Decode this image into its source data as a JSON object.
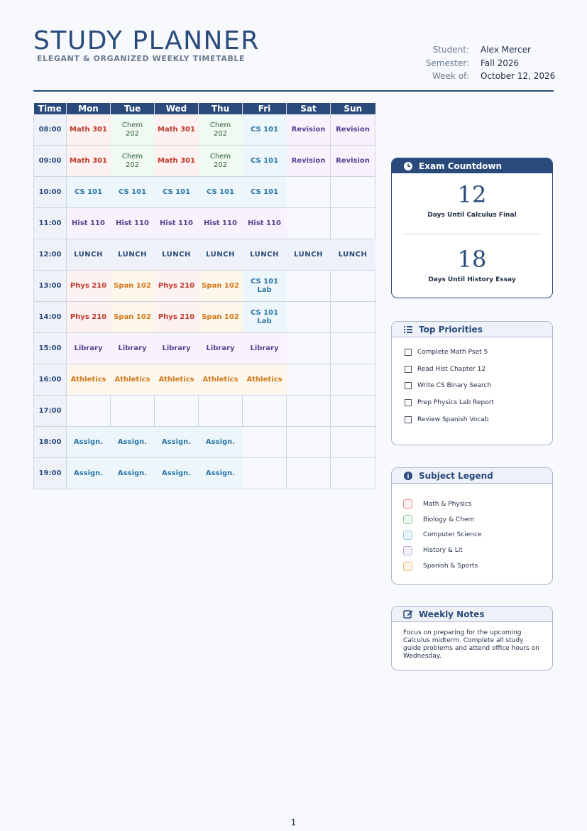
{
  "header": {
    "title": "STUDY PLANNER",
    "subtitle": "ELEGANT & ORGANIZED WEEKLY TIMETABLE",
    "info": [
      {
        "label": "Student:",
        "value": "Alex Mercer"
      },
      {
        "label": "Semester:",
        "value": "Fall 2026"
      },
      {
        "label": "Week of:",
        "value": "October 12, 2026"
      }
    ]
  },
  "timetable": {
    "columns": [
      "Time",
      "Mon",
      "Tue",
      "Wed",
      "Thu",
      "Fri",
      "Sat",
      "Sun"
    ],
    "rows": [
      {
        "time": "08:00",
        "cells": [
          [
            "Math 301",
            "red"
          ],
          [
            "Chem 202",
            "green"
          ],
          [
            "Math 301",
            "red"
          ],
          [
            "Chem 202",
            "green"
          ],
          [
            "CS 101",
            "blue"
          ],
          [
            "Revision",
            "rev"
          ],
          [
            "Revision",
            "rev"
          ]
        ]
      },
      {
        "time": "09:00",
        "cells": [
          [
            "Math 301",
            "red"
          ],
          [
            "Chem 202",
            "green"
          ],
          [
            "Math 301",
            "red"
          ],
          [
            "Chem 202",
            "green"
          ],
          [
            "CS 101",
            "blue"
          ],
          [
            "Revision",
            "rev"
          ],
          [
            "Revision",
            "rev"
          ]
        ]
      },
      {
        "time": "10:00",
        "cells": [
          [
            "CS 101",
            "blue"
          ],
          [
            "CS 101",
            "blue"
          ],
          [
            "CS 101",
            "blue"
          ],
          [
            "CS 101",
            "blue"
          ],
          [
            "CS 101",
            "blue"
          ],
          [
            "",
            ""
          ],
          [
            "",
            ""
          ]
        ]
      },
      {
        "time": "11:00",
        "cells": [
          [
            "Hist 110",
            "purple"
          ],
          [
            "Hist 110",
            "purple"
          ],
          [
            "Hist 110",
            "purple"
          ],
          [
            "Hist 110",
            "purple"
          ],
          [
            "Hist 110",
            "purple"
          ],
          [
            "",
            ""
          ],
          [
            "",
            ""
          ]
        ]
      },
      {
        "time": "12:00",
        "cells": [
          [
            "LUNCH",
            "lunch"
          ],
          [
            "LUNCH",
            "lunch"
          ],
          [
            "LUNCH",
            "lunch"
          ],
          [
            "LUNCH",
            "lunch"
          ],
          [
            "LUNCH",
            "lunch"
          ],
          [
            "LUNCH",
            "lunch"
          ],
          [
            "LUNCH",
            "lunch"
          ]
        ]
      },
      {
        "time": "13:00",
        "cells": [
          [
            "Phys 210",
            "red"
          ],
          [
            "Span 102",
            "orange"
          ],
          [
            "Phys 210",
            "red"
          ],
          [
            "Span 102",
            "orange"
          ],
          [
            "CS 101 Lab",
            "blue"
          ],
          [
            "",
            ""
          ],
          [
            "",
            ""
          ]
        ]
      },
      {
        "time": "14:00",
        "cells": [
          [
            "Phys 210",
            "red"
          ],
          [
            "Span 102",
            "orange"
          ],
          [
            "Phys 210",
            "red"
          ],
          [
            "Span 102",
            "orange"
          ],
          [
            "CS 101 Lab",
            "blue"
          ],
          [
            "",
            ""
          ],
          [
            "",
            ""
          ]
        ]
      },
      {
        "time": "15:00",
        "cells": [
          [
            "Library",
            "purple"
          ],
          [
            "Library",
            "purple"
          ],
          [
            "Library",
            "purple"
          ],
          [
            "Library",
            "purple"
          ],
          [
            "Library",
            "purple"
          ],
          [
            "",
            ""
          ],
          [
            "",
            ""
          ]
        ]
      },
      {
        "time": "16:00",
        "cells": [
          [
            "Athletics",
            "orange"
          ],
          [
            "Athletics",
            "orange"
          ],
          [
            "Athletics",
            "orange"
          ],
          [
            "Athletics",
            "orange"
          ],
          [
            "Athletics",
            "orange"
          ],
          [
            "",
            ""
          ],
          [
            "",
            ""
          ]
        ]
      },
      {
        "time": "17:00",
        "cells": [
          [
            "",
            ""
          ],
          [
            "",
            ""
          ],
          [
            "",
            ""
          ],
          [
            "",
            ""
          ],
          [
            "",
            ""
          ],
          [
            "",
            ""
          ],
          [
            "",
            ""
          ]
        ]
      },
      {
        "time": "18:00",
        "cells": [
          [
            "Assign.",
            "blue"
          ],
          [
            "Assign.",
            "blue"
          ],
          [
            "Assign.",
            "blue"
          ],
          [
            "Assign.",
            "blue"
          ],
          [
            "",
            ""
          ],
          [
            "",
            ""
          ],
          [
            "",
            ""
          ]
        ]
      },
      {
        "time": "19:00",
        "cells": [
          [
            "Assign.",
            "blue"
          ],
          [
            "Assign.",
            "blue"
          ],
          [
            "Assign.",
            "blue"
          ],
          [
            "Assign.",
            "blue"
          ],
          [
            "",
            ""
          ],
          [
            "",
            ""
          ],
          [
            "",
            ""
          ]
        ]
      }
    ]
  },
  "countdown": {
    "title": "Exam Countdown",
    "icon": "clock-icon",
    "items": [
      {
        "days": "12",
        "label": "Days Until Calculus Final"
      },
      {
        "days": "18",
        "label": "Days Until History Essay"
      }
    ]
  },
  "priorities": {
    "title": "Top Priorities",
    "icon": "list-icon",
    "items": [
      "Complete Math Pset 5",
      "Read Hist Chapter 12",
      "Write CS Binary Search",
      "Prep Physics Lab Report",
      "Review Spanish Vocab"
    ]
  },
  "legend": {
    "title": "Subject Legend",
    "icon": "info-icon",
    "items": [
      {
        "label": "Math & Physics",
        "border": "#e08a8a",
        "fill": "#fdf1f1"
      },
      {
        "label": "Biology & Chem",
        "border": "#8fcf9c",
        "fill": "#effaf1"
      },
      {
        "label": "Computer Science",
        "border": "#8cc7e0",
        "fill": "#edf7fb"
      },
      {
        "label": "History & Lit",
        "border": "#b9a3dc",
        "fill": "#f7f2fc"
      },
      {
        "label": "Spanish & Sports",
        "border": "#f0b77a",
        "fill": "#fdf6ea"
      }
    ]
  },
  "notes": {
    "title": "Weekly Notes",
    "icon": "edit-icon",
    "text": "Focus on preparing for the upcoming Calculus midterm.  Complete all study guide problems and attend office hours on Wednesday."
  },
  "page_number": "1"
}
